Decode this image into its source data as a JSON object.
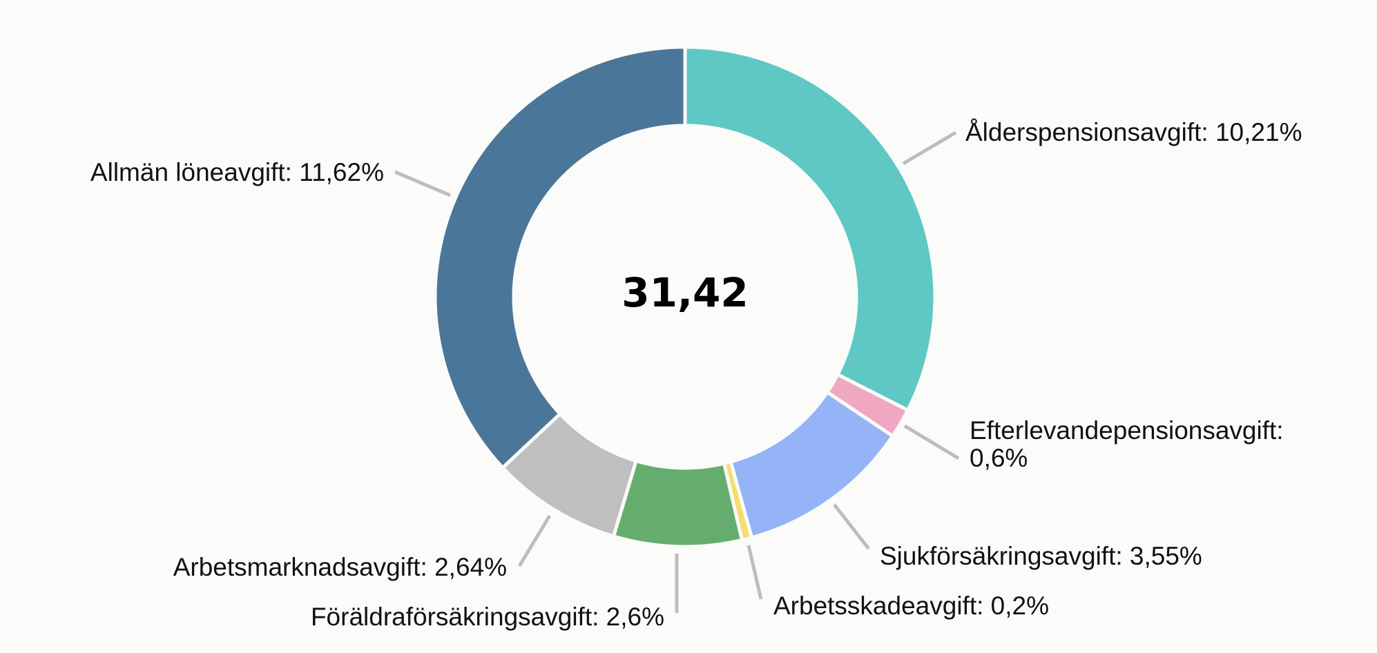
{
  "chart_data": {
    "type": "pie",
    "title": "",
    "center_label": "31,42",
    "slices": [
      {
        "label": "Ålderspensionsavgift: 10,21%",
        "value": 10.21,
        "color": "#5fc8c5"
      },
      {
        "label": "Efterlevandepensionsavgift:",
        "label_line2": "0,6%",
        "value": 0.6,
        "color": "#f0a8c2"
      },
      {
        "label": "Sjukförsäkringsavgift: 3,55%",
        "value": 3.55,
        "color": "#95b3f7"
      },
      {
        "label": "Arbetsskadeavgift: 0,2%",
        "value": 0.2,
        "color": "#f4dd6e"
      },
      {
        "label": "Föräldraförsäkringsavgift: 2,6%",
        "value": 2.6,
        "color": "#65ad6f"
      },
      {
        "label": "Arbetsmarknadsavgift: 2,64%",
        "value": 2.64,
        "color": "#bfbfbf"
      },
      {
        "label": "Allmän löneavgift: 11,62%",
        "value": 11.62,
        "color": "#4a7799"
      }
    ]
  }
}
